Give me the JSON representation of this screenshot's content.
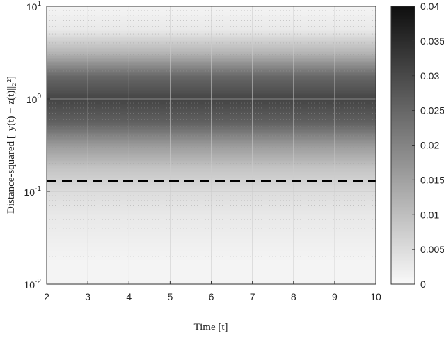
{
  "chart_data": {
    "type": "heatmap",
    "xlabel": "Time [t]",
    "ylabel": "Distance-squared [||y(t) − z(t)||₂²]",
    "xlim": [
      2,
      10
    ],
    "ylim": [
      0.01,
      10
    ],
    "yscale": "log",
    "xticks": [
      "2",
      "3",
      "4",
      "5",
      "6",
      "7",
      "8",
      "9",
      "10"
    ],
    "yticks": [
      {
        "base": "10",
        "exp": "-2"
      },
      {
        "base": "10",
        "exp": "-1"
      },
      {
        "base": "10",
        "exp": "0"
      },
      {
        "base": "10",
        "exp": "1"
      }
    ],
    "grid": true,
    "colormap": "gray-reversed",
    "colorbar": {
      "range": [
        0,
        0.04
      ],
      "ticks": [
        "0",
        "0.005",
        "0.01",
        "0.015",
        "0.02",
        "0.025",
        "0.03",
        "0.035",
        "0.04"
      ]
    },
    "density_profile": {
      "y": [
        0.01,
        0.0178,
        0.0316,
        0.0562,
        0.1,
        0.178,
        0.316,
        0.562,
        1,
        1.78,
        3.16,
        5.62,
        10
      ],
      "value": [
        0.001,
        0.001,
        0.002,
        0.003,
        0.005,
        0.009,
        0.016,
        0.026,
        0.031,
        0.025,
        0.012,
        0.003,
        0.001
      ]
    },
    "threshold_line": {
      "y": 0.13,
      "style": "dashed",
      "color": "#000000"
    }
  }
}
